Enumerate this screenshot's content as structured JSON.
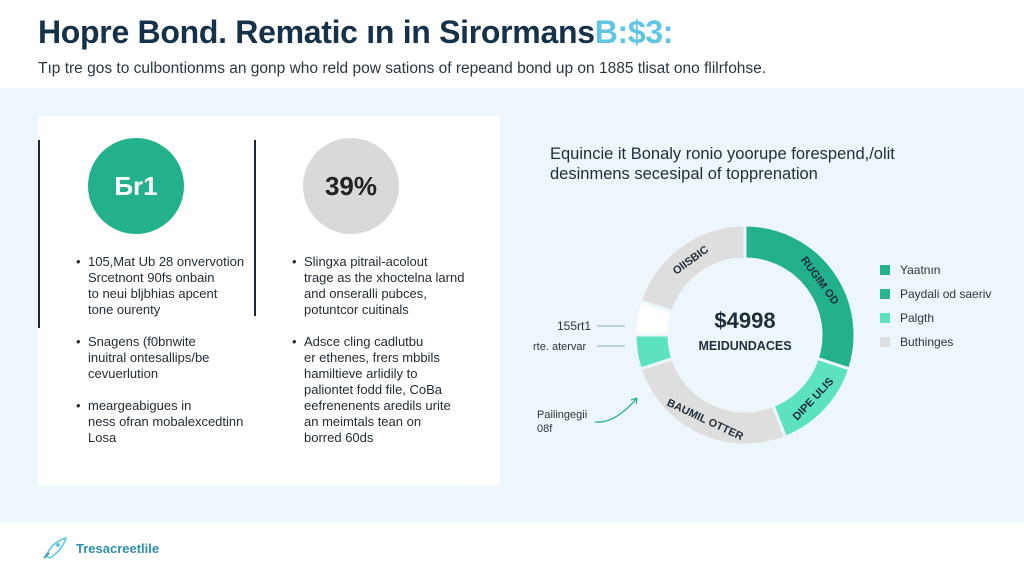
{
  "header": {
    "title_main": "Hopre Bond. Rematic ın in Sirormans",
    "title_accent": "B:$3:",
    "subtitle": "Tıp tre gos to culbontionms an gonp who reld pow sations of repeand bond up on 1885 tlisat ono flilrfohse."
  },
  "stats": {
    "left": {
      "value": "Бr1",
      "bullets": [
        "105,Mat Ub 28 onvervotion\nSrcetnont 90fs onbain\nto neui bljbhias apcent\ntone ourenty",
        "Snagens (f0bnwite\ninuitral ontesallips/be\ncevuerlution",
        "meargeabigues in\nness ofran mobalexcedtinn\nLosa"
      ]
    },
    "right": {
      "value": "39%",
      "bullets": [
        "Slingxa pitrail-acolout\ntrage as the xhoctelna larnd\nand onseralli pubces,\npotuntcor cuitinals",
        "Adsce cling cadlutbu\ner ethenes, frers mbbils\nhamiltieve arlidily to\npaliontet fodd file, CoBa\neefrenenents aredils urite\nan meimtals tean on\nborred 60ds"
      ]
    }
  },
  "chart_data": {
    "type": "pie",
    "title": "Equincie it Bonaly ronio yoorupe forespend,/olit\ndesinmens secesipal of topprenation",
    "center_value": "$4998",
    "center_label": "MEIDUNDACES",
    "slices": [
      {
        "label": "RUGIM OD",
        "value": 30,
        "color": "#22b18a"
      },
      {
        "label": "DIPE ULIS",
        "value": 14,
        "color": "#5de2c0"
      },
      {
        "label": "BAUMIL OTTER",
        "value": 26,
        "color": "#dedede"
      },
      {
        "label": "",
        "value": 5,
        "color": "#5de2c0"
      },
      {
        "label": "",
        "value": 5,
        "color": "#ffffff"
      },
      {
        "label": "OlISBIC",
        "value": 20,
        "color": "#dedede"
      }
    ],
    "callouts": [
      {
        "text": "155rt1"
      },
      {
        "text": "rte. atervar"
      },
      {
        "text": "Pailingegii\n08f"
      }
    ],
    "legend": [
      {
        "label": "Yaatnın",
        "color": "#22b18a"
      },
      {
        "label": "Paydali od saeriv",
        "color": "#28b58f"
      },
      {
        "label": "Palgth",
        "color": "#5de2c0"
      },
      {
        "label": "Buthinges",
        "color": "#dedede"
      }
    ]
  },
  "footer": {
    "brand": "Tresacreetlile"
  }
}
